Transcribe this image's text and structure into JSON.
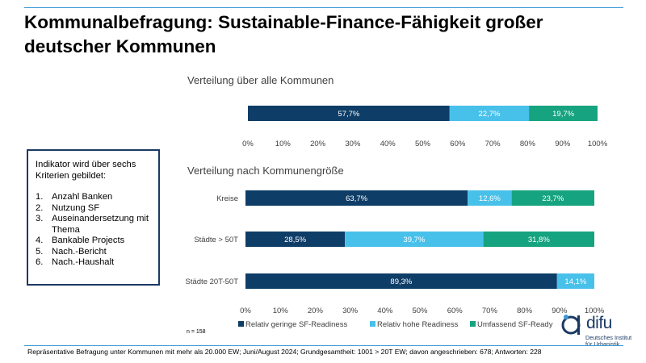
{
  "title": "Kommunalbefragung: Sustainable-Finance-Fähigkeit großer deutscher Kommunen",
  "indicator_box": {
    "heading": "Indikator wird über sechs Kriterien gebildet:",
    "items": [
      {
        "num": "1.",
        "text": "Anzahl Banken"
      },
      {
        "num": "2.",
        "text": "Nutzung SF"
      },
      {
        "num": "3.",
        "text": "Auseinandersetzung mit Thema"
      },
      {
        "num": "4.",
        "text": "Bankable Projects"
      },
      {
        "num": "5.",
        "text": "Nach.-Bericht"
      },
      {
        "num": "6.",
        "text": "Nach.-Haushalt"
      }
    ]
  },
  "footer_note": "Repräsentative Befragung unter Kommunen mit mehr als 20.000 EW; Juni/August 2024; Grundgesamtheit: 1001 > 20T EW; davon angeschrieben: 678; Antworten:  228",
  "logo": {
    "word": "difu",
    "line1": "Deutsches Institut",
    "line2": "für Urbanistik"
  },
  "colors": {
    "dark_blue": "#0e3d67",
    "light_blue": "#48c1ea",
    "green": "#16a37f",
    "accent_line": "#3a9ad6",
    "logo_blue": "#1b3a63",
    "logo_dot": "#3a9ad6"
  },
  "chart_data": [
    {
      "type": "bar",
      "orientation": "horizontal",
      "stacked": true,
      "title": "Verteilung  über alle Kommunen",
      "categories": [
        ""
      ],
      "series": [
        {
          "name": "Relativ geringe SF-Readiness",
          "values": [
            57.7
          ],
          "labels": [
            "57,7%"
          ]
        },
        {
          "name": "Relativ hohe Readiness",
          "values": [
            22.7
          ],
          "labels": [
            "22,7%"
          ]
        },
        {
          "name": "Umfassend SF-Ready",
          "values": [
            19.7
          ],
          "labels": [
            "19,7%"
          ]
        }
      ],
      "xlim": [
        0,
        100
      ],
      "x_ticks": [
        "0%",
        "10%",
        "20%",
        "30%",
        "40%",
        "50%",
        "60%",
        "70%",
        "80%",
        "90%",
        "100%"
      ],
      "grid": false
    },
    {
      "type": "bar",
      "orientation": "horizontal",
      "stacked": true,
      "title": "Verteilung  nach Kommunengröße",
      "categories": [
        "Kreise",
        "Städte > 50T",
        "Städte 20T-50T"
      ],
      "series": [
        {
          "name": "Relativ geringe SF-Readiness",
          "values": [
            63.7,
            28.5,
            89.3
          ],
          "labels": [
            "63,7%",
            "28,5%",
            "89,3%"
          ]
        },
        {
          "name": "Relativ hohe Readiness",
          "values": [
            12.6,
            39.7,
            14.1
          ],
          "labels": [
            "12,6%",
            "39,7%",
            "14,1%"
          ]
        },
        {
          "name": "Umfassend SF-Ready",
          "values": [
            23.7,
            31.8,
            0
          ],
          "labels": [
            "23,7%",
            "31,8%",
            ""
          ]
        }
      ],
      "xlim": [
        0,
        100
      ],
      "x_ticks": [
        "0%",
        "10%",
        "20%",
        "30%",
        "40%",
        "50%",
        "60%",
        "70%",
        "80%",
        "90%",
        "100%"
      ],
      "legend": "bottom",
      "annotation": "n = 158",
      "grid": false
    }
  ]
}
